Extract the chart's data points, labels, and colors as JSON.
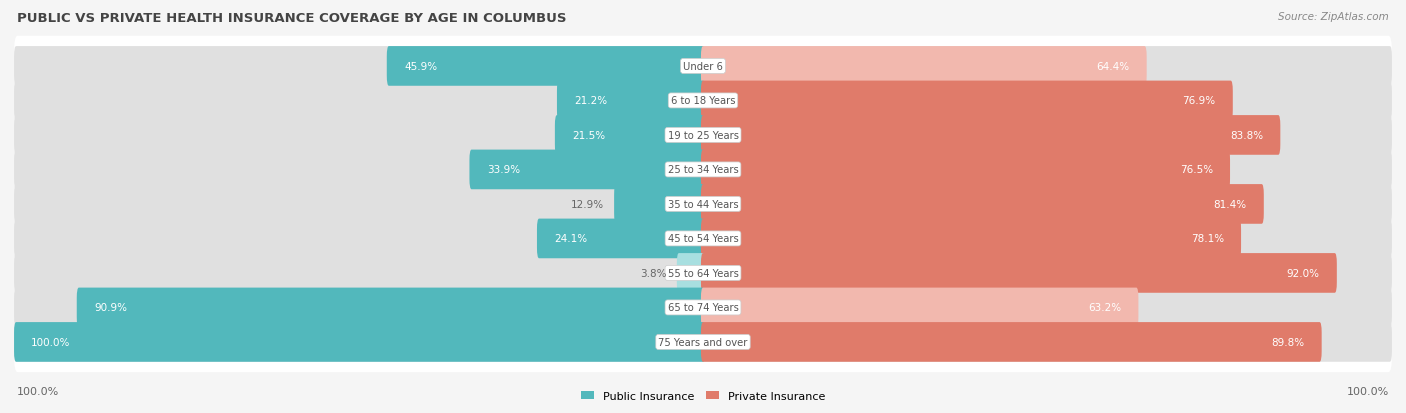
{
  "title": "PUBLIC VS PRIVATE HEALTH INSURANCE COVERAGE BY AGE IN COLUMBUS",
  "source": "Source: ZipAtlas.com",
  "categories": [
    "Under 6",
    "6 to 18 Years",
    "19 to 25 Years",
    "25 to 34 Years",
    "35 to 44 Years",
    "45 to 54 Years",
    "55 to 64 Years",
    "65 to 74 Years",
    "75 Years and over"
  ],
  "public_values": [
    45.9,
    21.2,
    21.5,
    33.9,
    12.9,
    24.1,
    3.8,
    90.9,
    100.0
  ],
  "private_values": [
    64.4,
    76.9,
    83.8,
    76.5,
    81.4,
    78.1,
    92.0,
    63.2,
    89.8
  ],
  "public_color": "#52b8bc",
  "private_color": "#e07b6a",
  "public_color_light": "#a8dfe0",
  "private_color_light": "#f2b8ae",
  "bg_color": "#f5f5f5",
  "row_bg_light": "#efefef",
  "row_bg_dark": "#e6e6e6",
  "bar_track_color": "#e0e0e0",
  "title_color": "#444444",
  "value_color_inside": "#ffffff",
  "value_color_outside": "#666666",
  "center_label_color": "#555555",
  "legend_public": "Public Insurance",
  "legend_private": "Private Insurance",
  "max_value": 100.0,
  "figwidth": 14.06,
  "figheight": 4.14,
  "dpi": 100
}
